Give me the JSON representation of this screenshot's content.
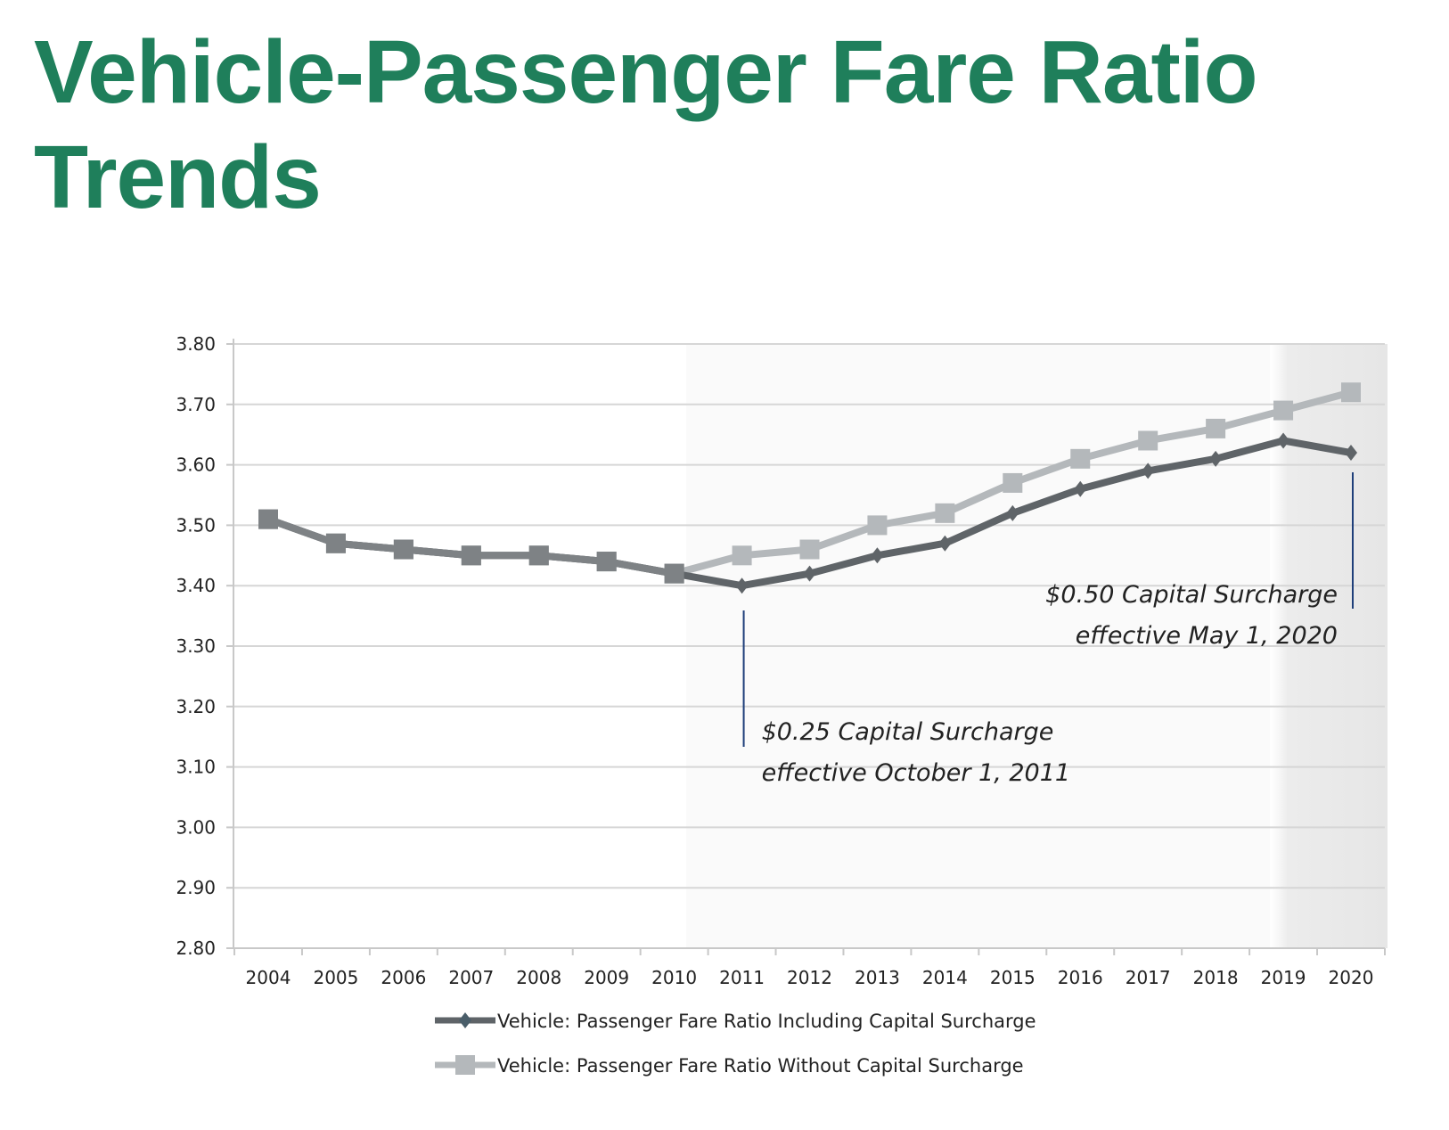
{
  "title": "Vehicle-Passenger Fare Ratio Trends",
  "chart_data": {
    "type": "line",
    "title": "",
    "xlabel": "",
    "ylabel": "",
    "ylim": [
      2.8,
      3.8
    ],
    "yticks": [
      "3.80",
      "3.70",
      "3.60",
      "3.50",
      "3.40",
      "3.30",
      "3.20",
      "3.10",
      "3.00",
      "2.90",
      "2.80"
    ],
    "categories": [
      "2004",
      "2005",
      "2006",
      "2007",
      "2008",
      "2009",
      "2010",
      "2011",
      "2012",
      "2013",
      "2014",
      "2015",
      "2016",
      "2017",
      "2018",
      "2019",
      "2020"
    ],
    "grid": true,
    "legend_placement": "bottom",
    "series": [
      {
        "name": "Vehicle: Passenger Fare Ratio Including Capital Surcharge",
        "color": "#5f6468",
        "marker": "diamond",
        "values": [
          3.51,
          3.47,
          3.46,
          3.45,
          3.45,
          3.44,
          3.42,
          3.4,
          3.42,
          3.45,
          3.47,
          3.52,
          3.56,
          3.59,
          3.61,
          3.64,
          3.62
        ]
      },
      {
        "name": "Vehicle: Passenger Fare Ratio Without Capital Surcharge",
        "color": "#b4b8bb",
        "marker": "square",
        "values": [
          3.51,
          3.47,
          3.46,
          3.45,
          3.45,
          3.44,
          3.42,
          3.45,
          3.46,
          3.5,
          3.52,
          3.57,
          3.61,
          3.64,
          3.66,
          3.69,
          3.72
        ]
      }
    ],
    "annotations": [
      {
        "lines": [
          "$0.25 Capital Surcharge",
          "effective October 1, 2011"
        ],
        "category": "2011"
      },
      {
        "lines": [
          "$0.50 Capital Surcharge",
          "effective May 1, 2020"
        ],
        "category": "2020"
      }
    ],
    "annotation_line_color": "#1f3f7a"
  }
}
